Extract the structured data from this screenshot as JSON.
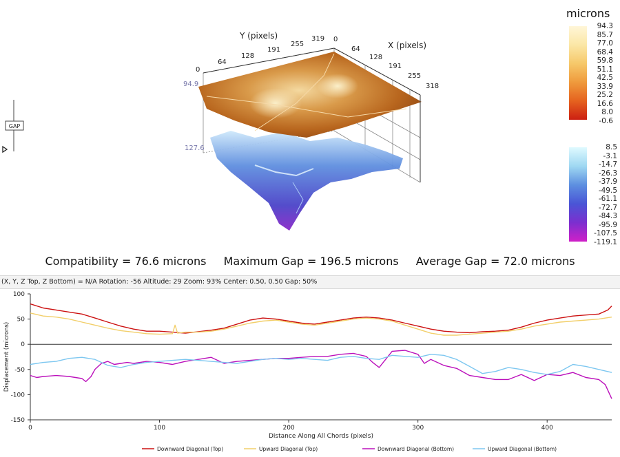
{
  "gap_widget": {
    "label": "GAP"
  },
  "surface3d": {
    "y_axis_title": "Y (pixels)",
    "x_axis_title": "X (pixels)",
    "y_ticks": [
      "0",
      "64",
      "128",
      "191",
      "255",
      "319"
    ],
    "x_ticks": [
      "0",
      "64",
      "128",
      "191",
      "255",
      "318"
    ],
    "z_top_label": "94.9",
    "z_bottom_label": "127.6"
  },
  "colorbar_top": {
    "title": "microns",
    "labels": [
      "94.3",
      "85.7",
      "77.0",
      "68.4",
      "59.8",
      "51.1",
      "42.5",
      "33.9",
      "25.2",
      "16.6",
      "8.0",
      "-0.6"
    ],
    "colors": [
      "#fff6d8",
      "#fbe7a6",
      "#f6c86a",
      "#ef9a3c",
      "#e5621f",
      "#cc1f12"
    ]
  },
  "colorbar_bottom": {
    "labels": [
      "8.5",
      "-3.1",
      "-14.7",
      "-26.3",
      "-37.9",
      "-49.5",
      "-61.1",
      "-72.7",
      "-84.3",
      "-95.9",
      "-107.5",
      "-119.1"
    ],
    "colors": [
      "#dffaff",
      "#9fd8f2",
      "#5d8fe0",
      "#4a55d6",
      "#7c2fcf",
      "#d020c8"
    ]
  },
  "summary": {
    "compatibility": "Compatibility = 76.6 microns",
    "max_gap": "Maximum Gap = 196.5 microns",
    "avg_gap": "Average Gap = 72.0 microns"
  },
  "status_bar": "(X, Y, Z Top, Z Bottom) = N/A  Rotation: -56 Altitude: 29  Zoom: 93%  Center: 0.50, 0.50  Gap: 50%",
  "chart_data": {
    "type": "line",
    "xlabel": "Distance Along All Chords (pixels)",
    "ylabel": "Displacement (microns)",
    "xlim": [
      0,
      450
    ],
    "ylim": [
      -150,
      100
    ],
    "xticks": [
      0,
      100,
      200,
      300,
      400
    ],
    "yticks": [
      -150,
      -100,
      -50,
      0,
      50,
      100
    ],
    "legend_position": "bottom",
    "series": [
      {
        "name": "Downward Diagonal (Top)",
        "color": "#cc1111",
        "x": [
          0,
          10,
          20,
          30,
          40,
          50,
          60,
          70,
          80,
          90,
          100,
          110,
          120,
          130,
          140,
          150,
          160,
          170,
          180,
          190,
          200,
          210,
          220,
          230,
          240,
          250,
          260,
          270,
          280,
          290,
          300,
          310,
          320,
          330,
          340,
          350,
          360,
          370,
          380,
          390,
          400,
          410,
          420,
          430,
          440,
          447,
          450
        ],
        "y": [
          80,
          72,
          68,
          64,
          60,
          52,
          44,
          36,
          30,
          26,
          26,
          24,
          22,
          25,
          28,
          32,
          40,
          48,
          52,
          50,
          46,
          42,
          40,
          44,
          48,
          52,
          54,
          52,
          48,
          42,
          36,
          30,
          26,
          24,
          23,
          25,
          26,
          28,
          34,
          42,
          48,
          52,
          56,
          58,
          60,
          68,
          76
        ]
      },
      {
        "name": "Upward Diagonal (Top)",
        "color": "#f2cf6a",
        "x": [
          0,
          10,
          20,
          30,
          40,
          50,
          60,
          70,
          80,
          90,
          100,
          110,
          112,
          114,
          120,
          130,
          140,
          150,
          160,
          170,
          180,
          190,
          200,
          210,
          220,
          230,
          240,
          250,
          260,
          270,
          280,
          290,
          300,
          310,
          320,
          330,
          340,
          350,
          360,
          370,
          380,
          390,
          400,
          410,
          420,
          430,
          440,
          450
        ],
        "y": [
          62,
          56,
          54,
          50,
          44,
          38,
          32,
          27,
          24,
          21,
          20,
          21,
          38,
          22,
          24,
          24,
          26,
          30,
          36,
          42,
          46,
          48,
          44,
          40,
          38,
          42,
          46,
          50,
          52,
          50,
          46,
          38,
          30,
          22,
          18,
          18,
          20,
          22,
          24,
          26,
          30,
          36,
          40,
          44,
          46,
          48,
          50,
          54
        ]
      },
      {
        "name": "Downward Diagonal (Bottom)",
        "color": "#bb10bb",
        "x": [
          0,
          5,
          10,
          15,
          20,
          30,
          40,
          43,
          47,
          50,
          55,
          60,
          65,
          70,
          75,
          80,
          90,
          100,
          110,
          120,
          130,
          140,
          150,
          160,
          170,
          180,
          190,
          200,
          210,
          220,
          230,
          240,
          250,
          260,
          265,
          270,
          275,
          280,
          290,
          300,
          305,
          310,
          320,
          330,
          340,
          350,
          360,
          370,
          380,
          390,
          400,
          410,
          420,
          430,
          440,
          445,
          450
        ],
        "y": [
          -62,
          -66,
          -64,
          -63,
          -62,
          -64,
          -68,
          -74,
          -64,
          -50,
          -38,
          -34,
          -40,
          -38,
          -36,
          -38,
          -34,
          -36,
          -40,
          -34,
          -30,
          -26,
          -38,
          -34,
          -32,
          -30,
          -28,
          -28,
          -26,
          -24,
          -24,
          -20,
          -18,
          -24,
          -36,
          -46,
          -30,
          -14,
          -12,
          -20,
          -38,
          -30,
          -42,
          -48,
          -62,
          -66,
          -70,
          -70,
          -60,
          -72,
          -60,
          -62,
          -56,
          -66,
          -70,
          -80,
          -108
        ]
      },
      {
        "name": "Upward Diagonal (Bottom)",
        "color": "#7dc7f0",
        "x": [
          0,
          10,
          20,
          30,
          40,
          50,
          60,
          70,
          80,
          90,
          100,
          110,
          120,
          130,
          140,
          150,
          160,
          170,
          180,
          190,
          200,
          210,
          220,
          230,
          240,
          250,
          260,
          270,
          280,
          290,
          300,
          310,
          320,
          330,
          340,
          350,
          360,
          370,
          380,
          390,
          400,
          410,
          420,
          430,
          440,
          450
        ],
        "y": [
          -40,
          -36,
          -34,
          -28,
          -26,
          -30,
          -42,
          -46,
          -40,
          -36,
          -34,
          -32,
          -30,
          -32,
          -34,
          -36,
          -38,
          -34,
          -30,
          -28,
          -30,
          -28,
          -30,
          -32,
          -26,
          -24,
          -28,
          -30,
          -22,
          -24,
          -26,
          -20,
          -22,
          -30,
          -44,
          -58,
          -54,
          -46,
          -50,
          -56,
          -60,
          -54,
          -40,
          -44,
          -50,
          -56
        ]
      }
    ]
  }
}
